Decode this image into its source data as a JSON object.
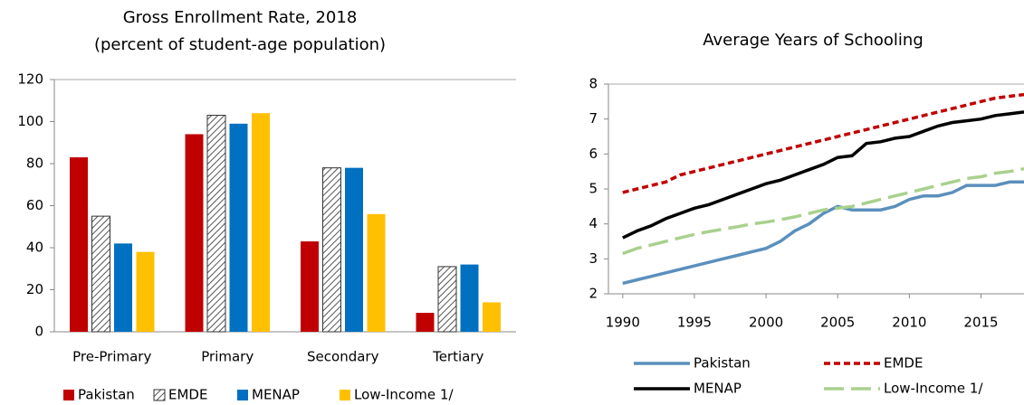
{
  "chart_data": [
    {
      "type": "bar",
      "title": "Gross Enrollment Rate, 2018",
      "subtitle": "(percent of student-age population)",
      "categories": [
        "Pre-Primary",
        "Primary",
        "Secondary",
        "Tertiary"
      ],
      "series": [
        {
          "name": "Pakistan",
          "color": "#c00000",
          "values": [
            83,
            94,
            43,
            9
          ]
        },
        {
          "name": "EMDE",
          "color": "#7f7f7f",
          "pattern": "hatch",
          "values": [
            55,
            103,
            78,
            31
          ]
        },
        {
          "name": "MENAP",
          "color": "#0070c0",
          "values": [
            42,
            99,
            78,
            32
          ]
        },
        {
          "name": "Low-Income 1/",
          "color": "#ffc000",
          "values": [
            38,
            104,
            56,
            14
          ]
        }
      ],
      "ylim": [
        0,
        120
      ],
      "yticks": [
        0,
        20,
        40,
        60,
        80,
        100,
        120
      ],
      "legend": "bottom"
    },
    {
      "type": "line",
      "title": "Average Years of Schooling",
      "x": [
        1990,
        1991,
        1992,
        1993,
        1994,
        1995,
        1996,
        1997,
        1998,
        1999,
        2000,
        2001,
        2002,
        2003,
        2004,
        2005,
        2006,
        2007,
        2008,
        2009,
        2010,
        2011,
        2012,
        2013,
        2014,
        2015,
        2016,
        2017,
        2018
      ],
      "series": [
        {
          "name": "Pakistan",
          "color": "#5b8fbd",
          "dash": "solid",
          "values": [
            2.3,
            2.4,
            2.5,
            2.6,
            2.7,
            2.8,
            2.9,
            3.0,
            3.1,
            3.2,
            3.3,
            3.5,
            3.8,
            4.0,
            4.3,
            4.5,
            4.4,
            4.4,
            4.4,
            4.5,
            4.7,
            4.8,
            4.8,
            4.9,
            5.1,
            5.1,
            5.1,
            5.2,
            5.2
          ]
        },
        {
          "name": "EMDE",
          "color": "#c00000",
          "dash": "short",
          "values": [
            4.9,
            5.0,
            5.1,
            5.2,
            5.4,
            5.5,
            5.6,
            5.7,
            5.8,
            5.9,
            6.0,
            6.1,
            6.2,
            6.3,
            6.4,
            6.5,
            6.6,
            6.7,
            6.8,
            6.9,
            7.0,
            7.1,
            7.2,
            7.3,
            7.4,
            7.5,
            7.6,
            7.65,
            7.7
          ]
        },
        {
          "name": "MENAP",
          "color": "#000000",
          "dash": "solid",
          "values": [
            3.6,
            3.8,
            3.95,
            4.15,
            4.3,
            4.45,
            4.55,
            4.7,
            4.85,
            5.0,
            5.15,
            5.25,
            5.4,
            5.55,
            5.7,
            5.9,
            5.95,
            6.3,
            6.35,
            6.45,
            6.5,
            6.65,
            6.8,
            6.9,
            6.95,
            7.0,
            7.1,
            7.15,
            7.2
          ]
        },
        {
          "name": "Low-Income 1/",
          "color": "#a9d18e",
          "dash": "long",
          "values": [
            3.15,
            3.3,
            3.4,
            3.5,
            3.6,
            3.7,
            3.78,
            3.85,
            3.92,
            4.0,
            4.05,
            4.12,
            4.2,
            4.3,
            4.4,
            4.45,
            4.5,
            4.6,
            4.7,
            4.8,
            4.9,
            5.0,
            5.1,
            5.2,
            5.3,
            5.35,
            5.45,
            5.5,
            5.58
          ]
        }
      ],
      "xlim": [
        1989,
        2018
      ],
      "xticks": [
        1990,
        1995,
        2000,
        2005,
        2010,
        2015
      ],
      "ylim": [
        2,
        8
      ],
      "yticks": [
        2,
        3,
        4,
        5,
        6,
        7,
        8
      ],
      "legend": "bottom"
    }
  ]
}
